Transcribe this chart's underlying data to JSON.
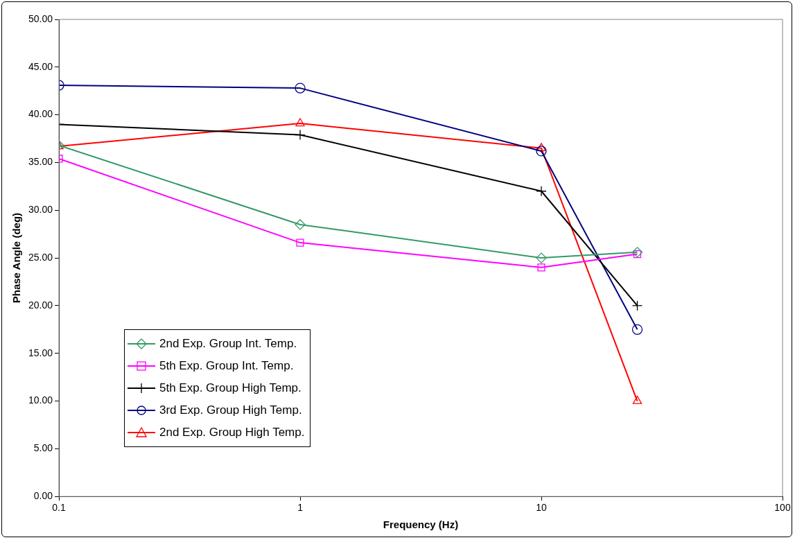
{
  "chart_data": {
    "type": "line",
    "xlabel": "Frequency (Hz)",
    "ylabel": "Phase Angle (deg)",
    "log": "x",
    "x": [
      0.1,
      1,
      10,
      25
    ],
    "xlim": [
      0.1,
      100
    ],
    "xticks": [
      0.1,
      1,
      10,
      100
    ],
    "ylim": [
      0,
      50
    ],
    "yticks": [
      {
        "value": 0,
        "label": "0.00"
      },
      {
        "value": 5,
        "label": "5.00"
      },
      {
        "value": 10,
        "label": "10.00"
      },
      {
        "value": 15,
        "label": "15.00"
      },
      {
        "value": 20,
        "label": "20.00"
      },
      {
        "value": 25,
        "label": "25.00"
      },
      {
        "value": 30,
        "label": "30.00"
      },
      {
        "value": 35,
        "label": "35.00"
      },
      {
        "value": 40,
        "label": "40.00"
      },
      {
        "value": 45,
        "label": "45.00"
      },
      {
        "value": 50,
        "label": "50.00"
      }
    ],
    "grid": false,
    "legend": "bottom left",
    "line_style": "solid",
    "series": [
      {
        "name": "2nd Exp. Group Int. Temp.",
        "color": "#339966",
        "marker": "diamond",
        "values": [
          36.8,
          28.5,
          25.0,
          25.6
        ]
      },
      {
        "name": "5th Exp. Group Int. Temp.",
        "color": "#ff00ff",
        "marker": "square",
        "values": [
          35.4,
          26.6,
          24.0,
          25.4
        ]
      },
      {
        "name": "5th Exp. Group High Temp.",
        "color": "#000000",
        "marker": "cross",
        "values": [
          39.0,
          37.9,
          32.0,
          20.0
        ]
      },
      {
        "name": "3rd Exp. Group High Temp.",
        "color": "#000080",
        "marker": "circle",
        "values": [
          43.1,
          42.8,
          36.2,
          17.5
        ]
      },
      {
        "name": "2nd Exp. Group High Temp.",
        "color": "#ff0000",
        "marker": "triangle",
        "values": [
          36.7,
          39.1,
          36.5,
          10.0
        ]
      }
    ]
  }
}
